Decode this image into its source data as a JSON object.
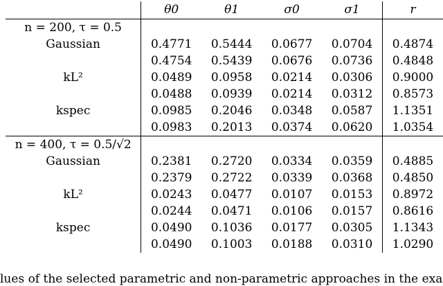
{
  "table": {
    "header": [
      "",
      "θ0",
      "θ1",
      "σ0",
      "σ1",
      "r"
    ],
    "sections": [
      {
        "title": "n = 200, τ = 0.5",
        "groups": [
          {
            "method": "Gaussian",
            "rows": [
              [
                "0.4771",
                "0.5444",
                "0.0677",
                "0.0704",
                "0.4874"
              ],
              [
                "0.4754",
                "0.5439",
                "0.0676",
                "0.0736",
                "0.4848"
              ]
            ]
          },
          {
            "method": "kL²",
            "rows": [
              [
                "0.0489",
                "0.0958",
                "0.0214",
                "0.0306",
                "0.9000"
              ],
              [
                "0.0488",
                "0.0939",
                "0.0214",
                "0.0312",
                "0.8573"
              ]
            ]
          },
          {
            "method": "kspec",
            "rows": [
              [
                "0.0985",
                "0.2046",
                "0.0348",
                "0.0587",
                "1.1351"
              ],
              [
                "0.0983",
                "0.2013",
                "0.0374",
                "0.0620",
                "1.0354"
              ]
            ]
          }
        ]
      },
      {
        "title": "n = 400, τ = 0.5/√2",
        "groups": [
          {
            "method": "Gaussian",
            "rows": [
              [
                "0.2381",
                "0.2720",
                "0.0334",
                "0.0359",
                "0.4885"
              ],
              [
                "0.2379",
                "0.2722",
                "0.0339",
                "0.0368",
                "0.4850"
              ]
            ]
          },
          {
            "method": "kL²",
            "rows": [
              [
                "0.0243",
                "0.0477",
                "0.0107",
                "0.0153",
                "0.8972"
              ],
              [
                "0.0244",
                "0.0471",
                "0.0106",
                "0.0157",
                "0.8616"
              ]
            ]
          },
          {
            "method": "kspec",
            "rows": [
              [
                "0.0490",
                "0.1036",
                "0.0177",
                "0.0305",
                "1.1343"
              ],
              [
                "0.0490",
                "0.1003",
                "0.0188",
                "0.0310",
                "1.0290"
              ]
            ]
          }
        ]
      }
    ]
  },
  "footer_text": "lues of the selected parametric and non-parametric approaches in the example in Sect"
}
